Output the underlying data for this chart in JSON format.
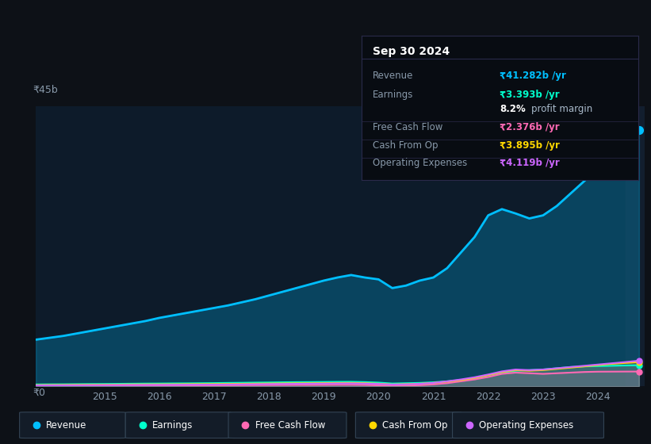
{
  "bg_color": "#0d1117",
  "chart_bg": "#0d1b2a",
  "title": "Sep 30 2024",
  "y_label_top": "₹45b",
  "y_label_bottom": "₹0",
  "years": [
    2013.75,
    2014.0,
    2014.25,
    2014.5,
    2014.75,
    2015.0,
    2015.25,
    2015.5,
    2015.75,
    2016.0,
    2016.25,
    2016.5,
    2016.75,
    2017.0,
    2017.25,
    2017.5,
    2017.75,
    2018.0,
    2018.25,
    2018.5,
    2018.75,
    2019.0,
    2019.25,
    2019.5,
    2019.75,
    2020.0,
    2020.25,
    2020.5,
    2020.75,
    2021.0,
    2021.25,
    2021.5,
    2021.75,
    2022.0,
    2022.25,
    2022.5,
    2022.75,
    2023.0,
    2023.25,
    2023.5,
    2023.75,
    2024.0,
    2024.25,
    2024.5,
    2024.75
  ],
  "revenue": [
    7.5,
    7.8,
    8.1,
    8.5,
    8.9,
    9.3,
    9.7,
    10.1,
    10.5,
    11.0,
    11.4,
    11.8,
    12.2,
    12.6,
    13.0,
    13.5,
    14.0,
    14.6,
    15.2,
    15.8,
    16.4,
    17.0,
    17.5,
    17.9,
    17.5,
    17.2,
    15.8,
    16.2,
    17.0,
    17.5,
    19.0,
    21.5,
    24.0,
    27.5,
    28.5,
    27.8,
    27.0,
    27.5,
    29.0,
    31.0,
    33.0,
    35.0,
    37.5,
    39.5,
    41.28
  ],
  "earnings": [
    0.3,
    0.32,
    0.33,
    0.35,
    0.37,
    0.38,
    0.4,
    0.42,
    0.44,
    0.45,
    0.47,
    0.48,
    0.5,
    0.52,
    0.55,
    0.57,
    0.6,
    0.62,
    0.65,
    0.67,
    0.68,
    0.7,
    0.72,
    0.73,
    0.68,
    0.6,
    0.45,
    0.5,
    0.55,
    0.65,
    0.8,
    1.0,
    1.3,
    1.8,
    2.2,
    2.5,
    2.6,
    2.7,
    2.9,
    3.1,
    3.2,
    3.25,
    3.3,
    3.35,
    3.393
  ],
  "free_cash_flow": [
    0.1,
    0.1,
    0.1,
    0.1,
    0.12,
    0.12,
    0.13,
    0.13,
    0.14,
    0.14,
    0.15,
    0.15,
    0.16,
    0.16,
    0.17,
    0.18,
    0.19,
    0.2,
    0.21,
    0.22,
    0.22,
    0.23,
    0.24,
    0.24,
    0.22,
    0.15,
    0.1,
    0.12,
    0.18,
    0.3,
    0.5,
    0.8,
    1.1,
    1.5,
    2.0,
    2.2,
    2.1,
    2.0,
    2.1,
    2.2,
    2.3,
    2.35,
    2.36,
    2.37,
    2.376
  ],
  "cash_from_op": [
    0.2,
    0.22,
    0.23,
    0.25,
    0.26,
    0.27,
    0.28,
    0.3,
    0.31,
    0.32,
    0.33,
    0.35,
    0.36,
    0.37,
    0.39,
    0.41,
    0.43,
    0.45,
    0.47,
    0.49,
    0.5,
    0.52,
    0.54,
    0.55,
    0.51,
    0.42,
    0.3,
    0.35,
    0.42,
    0.55,
    0.75,
    1.0,
    1.35,
    1.8,
    2.3,
    2.6,
    2.5,
    2.6,
    2.8,
    3.0,
    3.2,
    3.4,
    3.6,
    3.75,
    3.895
  ],
  "op_expenses": [
    0.15,
    0.16,
    0.17,
    0.18,
    0.19,
    0.2,
    0.21,
    0.22,
    0.23,
    0.24,
    0.25,
    0.26,
    0.27,
    0.28,
    0.3,
    0.32,
    0.34,
    0.36,
    0.38,
    0.4,
    0.42,
    0.44,
    0.46,
    0.47,
    0.44,
    0.38,
    0.28,
    0.32,
    0.4,
    0.55,
    0.8,
    1.1,
    1.45,
    1.9,
    2.4,
    2.7,
    2.6,
    2.7,
    2.9,
    3.1,
    3.3,
    3.5,
    3.7,
    3.9,
    4.119
  ],
  "revenue_color": "#00bfff",
  "earnings_color": "#00ffcc",
  "fcf_color": "#ff69b4",
  "cashop_color": "#ffd700",
  "opex_color": "#cc66ff",
  "x_ticks": [
    2015,
    2016,
    2017,
    2018,
    2019,
    2020,
    2021,
    2022,
    2023,
    2024
  ],
  "ylim": [
    0,
    45
  ],
  "legend_items": [
    {
      "label": "Revenue",
      "color": "#00bfff"
    },
    {
      "label": "Earnings",
      "color": "#00ffcc"
    },
    {
      "label": "Free Cash Flow",
      "color": "#ff69b4"
    },
    {
      "label": "Cash From Op",
      "color": "#ffd700"
    },
    {
      "label": "Operating Expenses",
      "color": "#cc66ff"
    }
  ],
  "tooltip": {
    "title": "Sep 30 2024",
    "rows": [
      {
        "label": "Revenue",
        "value": "₹41.282b /yr",
        "value_color": "#00bfff",
        "divider_after": false
      },
      {
        "label": "Earnings",
        "value": "₹3.393b /yr",
        "value_color": "#00ffcc",
        "divider_after": false
      },
      {
        "label": "",
        "value": "8.2% profit margin",
        "value_color": "#ffffff",
        "divider_after": true
      },
      {
        "label": "Free Cash Flow",
        "value": "₹2.376b /yr",
        "value_color": "#ff69b4",
        "divider_after": true
      },
      {
        "label": "Cash From Op",
        "value": "₹3.895b /yr",
        "value_color": "#ffd700",
        "divider_after": true
      },
      {
        "label": "Operating Expenses",
        "value": "₹4.119b /yr",
        "value_color": "#cc66ff",
        "divider_after": false
      }
    ]
  }
}
